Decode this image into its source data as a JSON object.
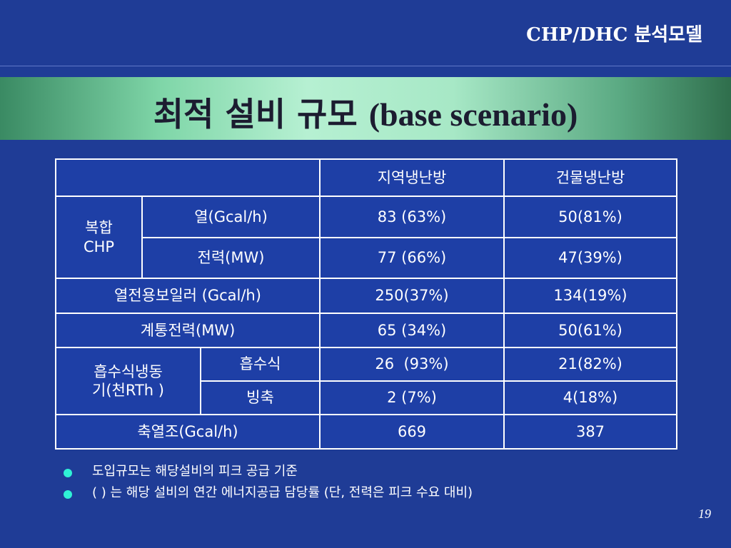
{
  "header": {
    "title": "CHP/DHC 분석모델"
  },
  "slide": {
    "title_ko": "최적 설비 규모",
    "title_en": "(base scenario)",
    "page_number": "19"
  },
  "table": {
    "columns": [
      "지역냉난방",
      "건물냉난방"
    ],
    "chp_label_line1": "복합",
    "chp_label_line2": "CHP",
    "rows": {
      "heat": {
        "label": "열(Gcal/h)",
        "c1": "83 (63%)",
        "c2": "50(81%)"
      },
      "power": {
        "label": "전력(MW)",
        "c1": "77 (66%)",
        "c2": "47(39%)"
      },
      "boiler": {
        "label": "열전용보일러 (Gcal/h)",
        "c1": "250(37%)",
        "c2": "134(19%)"
      },
      "grid": {
        "label": "계통전력(MW)",
        "c1": "65 (34%)",
        "c2": "50(61%)"
      },
      "absorption": {
        "label": "흡수식",
        "c1": "26  (93%)",
        "c2": "21(82%)"
      },
      "ice": {
        "label": "빙축",
        "c1": "2 (7%)",
        "c2": "4(18%)"
      },
      "storage": {
        "label": "축열조(Gcal/h)",
        "c1": "669",
        "c2": "387"
      }
    },
    "chiller_label_line1": "흡수식냉동",
    "chiller_label_line2": "기(천RTh )"
  },
  "notes": [
    "도입규모는 해당설비의 피크 공급 기준",
    "( ) 는 해당 설비의 연간 에너지공급 담당률 (단, 전력은 피크 수요 대비)"
  ],
  "colors": {
    "background": "#1f3c96",
    "banner_green": "#b6f0d2",
    "bullet": "#2ff2d6",
    "table_border": "#ffffff"
  }
}
